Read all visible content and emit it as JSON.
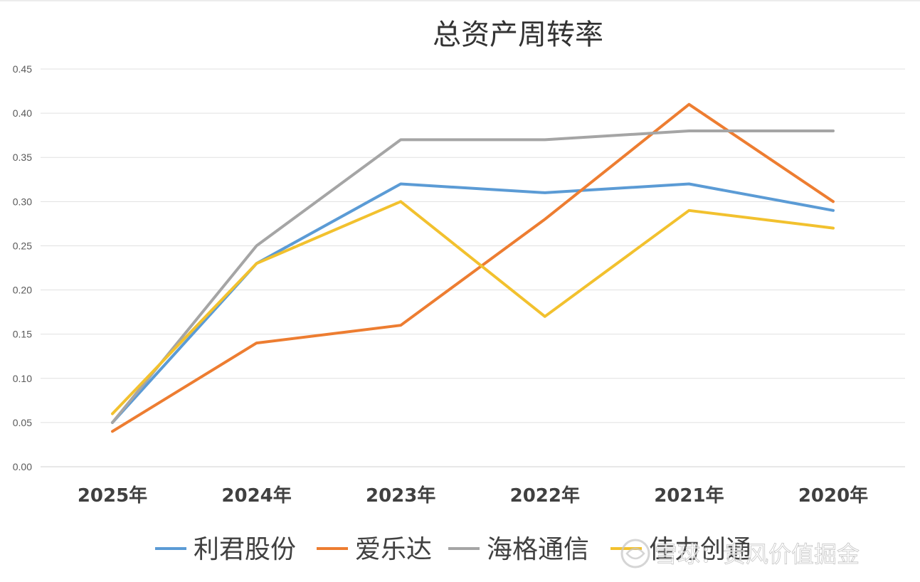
{
  "chart_data": {
    "type": "line",
    "title": "总资产周转率",
    "categories": [
      "2025年",
      "2024年",
      "2023年",
      "2022年",
      "2021年",
      "2020年"
    ],
    "ylim": [
      0,
      0.45
    ],
    "yticks": [
      "0.00",
      "0.05",
      "0.10",
      "0.15",
      "0.20",
      "0.25",
      "0.30",
      "0.35",
      "0.40",
      "0.45"
    ],
    "grid": true,
    "legend_position": "bottom",
    "series": [
      {
        "name": "利君股份",
        "color": "#5B9BD5",
        "values": [
          0.05,
          0.23,
          0.32,
          0.31,
          0.32,
          0.29
        ]
      },
      {
        "name": "爱乐达",
        "color": "#ED7D31",
        "values": [
          0.04,
          0.14,
          0.16,
          0.28,
          0.41,
          0.3
        ]
      },
      {
        "name": "海格通信",
        "color": "#A5A5A5",
        "values": [
          0.05,
          0.25,
          0.37,
          0.37,
          0.38,
          0.38
        ]
      },
      {
        "name": "佳力创通",
        "color": "#F2C12E",
        "values": [
          0.06,
          0.23,
          0.3,
          0.17,
          0.29,
          0.27
        ]
      }
    ]
  },
  "watermark": {
    "text": "雪球：贵风价值掘金"
  }
}
